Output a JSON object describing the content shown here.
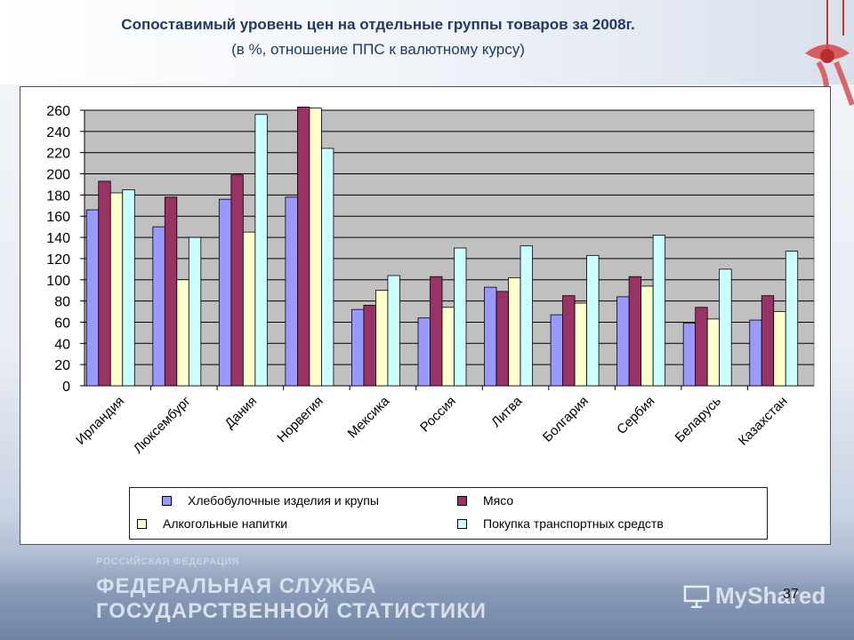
{
  "header": {
    "title": "Сопоставимый уровень цен на отдельные группы товаров за 2008г.",
    "subtitle": "(в %, отношение ППС к валютному курсу)"
  },
  "footer": {
    "org_line1": "РОССИЙСКАЯ ФЕДЕРАЦИЯ",
    "org_line2": "ФЕДЕРАЛЬНАЯ СЛУЖБА",
    "org_line3": "ГОСУДАРСТВЕННОЙ СТАТИСТИКИ",
    "page_number": "37",
    "watermark": "MyShared"
  },
  "colors": {
    "plot_bg": "#c0c0c0",
    "bread": "#9999ff",
    "meat": "#993366",
    "alcohol": "#ffffcc",
    "transport": "#ccffff"
  },
  "chart_data": {
    "type": "bar",
    "categories": [
      "Ирландия",
      "Люксембург",
      "Дания",
      "Норвегия",
      "Мексика",
      "Россия",
      "Литва",
      "Болгария",
      "Сербия",
      "Беларусь",
      "Казахстан"
    ],
    "series": [
      {
        "name": "Хлебобулочные изделия и крупы",
        "color": "#9999ff",
        "values": [
          166,
          150,
          176,
          178,
          72,
          64,
          93,
          67,
          84,
          59,
          62
        ]
      },
      {
        "name": "Мясо",
        "color": "#993366",
        "values": [
          193,
          178,
          199,
          263,
          76,
          103,
          89,
          85,
          103,
          74,
          85
        ]
      },
      {
        "name": "Алкогольные напитки",
        "color": "#ffffcc",
        "values": [
          182,
          100,
          145,
          262,
          90,
          74,
          102,
          78,
          94,
          63,
          70
        ]
      },
      {
        "name": "Покупка транспортных средств",
        "color": "#ccffff",
        "values": [
          185,
          140,
          256,
          224,
          104,
          130,
          132,
          123,
          142,
          110,
          127
        ]
      }
    ],
    "ylim": [
      0,
      260
    ],
    "yticks": [
      0,
      20,
      40,
      60,
      80,
      100,
      120,
      140,
      160,
      180,
      200,
      220,
      240,
      260
    ],
    "grid": true,
    "legend_position": "bottom"
  }
}
